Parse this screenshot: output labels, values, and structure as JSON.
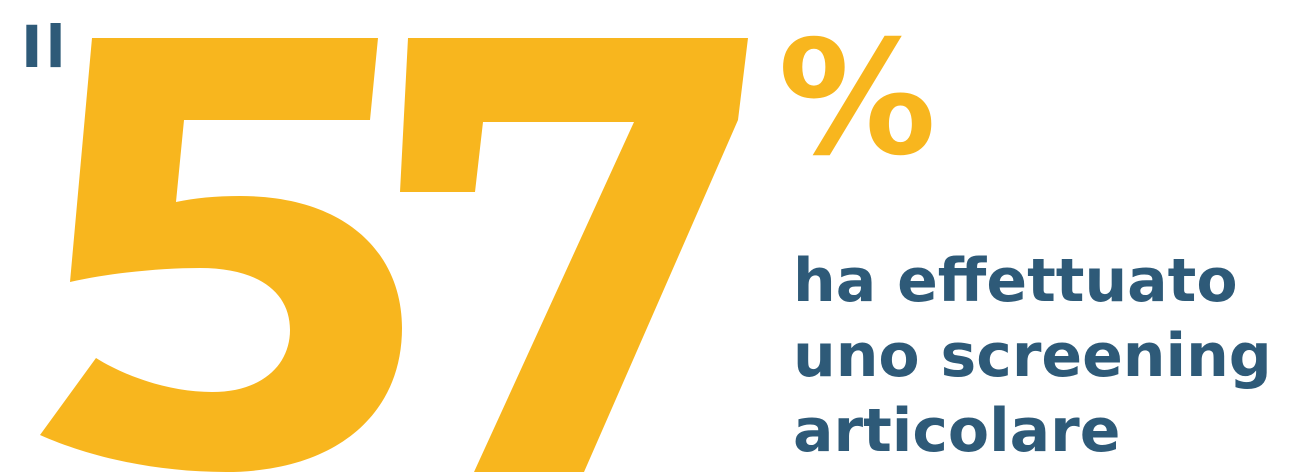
{
  "stat": {
    "prefix": "Il",
    "value": "57",
    "percent_sign": "%",
    "description_lines": [
      "ha effettuato",
      "uno screening",
      "articolare"
    ]
  },
  "colors": {
    "accent_yellow": "#F8B61E",
    "text_blue": "#2E5A78",
    "background": "#FFFFFF"
  }
}
